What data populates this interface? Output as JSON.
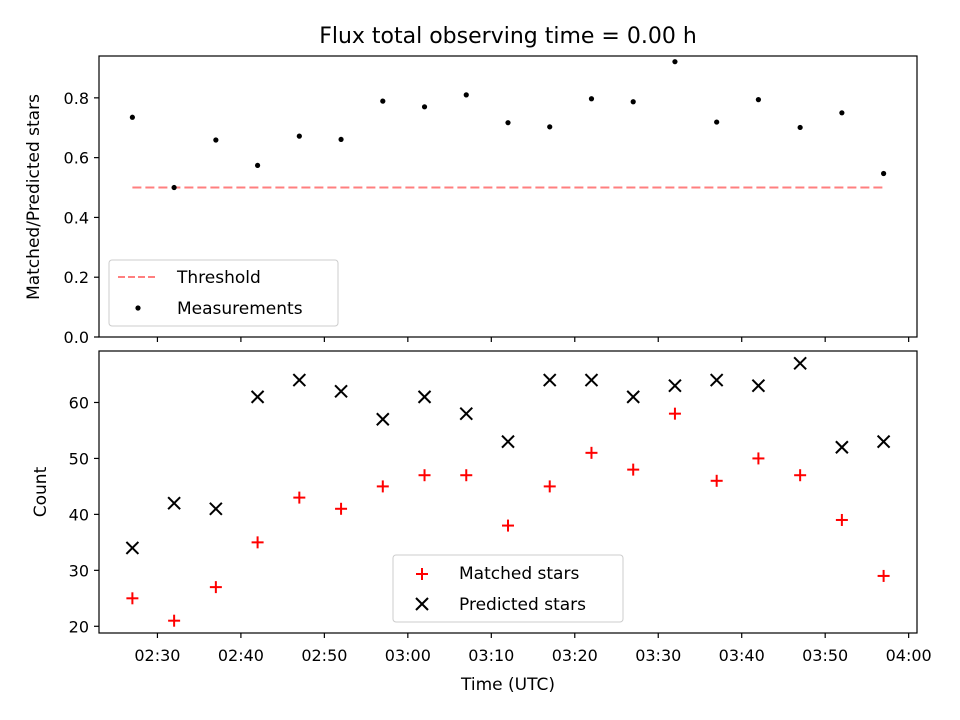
{
  "chart_data": [
    {
      "type": "scatter",
      "title": "Flux total observing time = 0.00 h",
      "xlabel": "",
      "ylabel": "Matched/Predicted stars",
      "ylim": [
        0.0,
        0.94
      ],
      "yticks": [
        0.0,
        0.2,
        0.4,
        0.6,
        0.8
      ],
      "yticklabels": [
        "0.0",
        "0.2",
        "0.4",
        "0.6",
        "0.8"
      ],
      "x_shared": true,
      "grid": false,
      "legend_position": "lower-left",
      "threshold": {
        "name": "Threshold",
        "value": 0.5,
        "x_start": "02:27",
        "x_end": "03:57",
        "color": "#ff7f7f",
        "style": "dashed"
      },
      "series": [
        {
          "name": "Measurements",
          "color": "#000000",
          "marker": "dot",
          "x": [
            "02:27",
            "02:32",
            "02:37",
            "02:42",
            "02:47",
            "02:52",
            "02:57",
            "03:02",
            "03:07",
            "03:12",
            "03:17",
            "03:22",
            "03:27",
            "03:32",
            "03:37",
            "03:42",
            "03:47",
            "03:52",
            "03:57"
          ],
          "y": [
            0.735,
            0.5,
            0.659,
            0.574,
            0.672,
            0.661,
            0.789,
            0.77,
            0.81,
            0.717,
            0.703,
            0.797,
            0.787,
            0.921,
            0.719,
            0.794,
            0.701,
            0.75,
            0.547
          ]
        }
      ]
    },
    {
      "type": "scatter",
      "title": "",
      "xlabel": "Time (UTC)",
      "ylabel": "Count",
      "xlim": [
        "02:23",
        "04:01"
      ],
      "xticks": [
        "02:30",
        "02:40",
        "02:50",
        "03:00",
        "03:10",
        "03:20",
        "03:30",
        "03:40",
        "03:50",
        "04:00"
      ],
      "xticklabels": [
        "02:30",
        "02:40",
        "02:50",
        "03:00",
        "03:10",
        "03:20",
        "03:30",
        "03:40",
        "03:50",
        "04:00"
      ],
      "ylim": [
        18.8,
        69.2
      ],
      "yticks": [
        20,
        30,
        40,
        50,
        60
      ],
      "yticklabels": [
        "20",
        "30",
        "40",
        "50",
        "60"
      ],
      "grid": false,
      "legend_position": "lower-center",
      "series": [
        {
          "name": "Matched stars",
          "color": "#ff0000",
          "marker": "plus",
          "x": [
            "02:27",
            "02:32",
            "02:37",
            "02:42",
            "02:47",
            "02:52",
            "02:57",
            "03:02",
            "03:07",
            "03:12",
            "03:17",
            "03:22",
            "03:27",
            "03:32",
            "03:37",
            "03:42",
            "03:47",
            "03:52",
            "03:57"
          ],
          "y": [
            25,
            21,
            27,
            35,
            43,
            41,
            45,
            47,
            47,
            38,
            45,
            51,
            48,
            58,
            46,
            50,
            47,
            39,
            29
          ]
        },
        {
          "name": "Predicted stars",
          "color": "#000000",
          "marker": "x",
          "x": [
            "02:27",
            "02:32",
            "02:37",
            "02:42",
            "02:47",
            "02:52",
            "02:57",
            "03:02",
            "03:07",
            "03:12",
            "03:17",
            "03:22",
            "03:27",
            "03:32",
            "03:37",
            "03:42",
            "03:47",
            "03:52",
            "03:57"
          ],
          "y": [
            34,
            42,
            41,
            61,
            64,
            62,
            57,
            61,
            58,
            53,
            64,
            64,
            61,
            63,
            64,
            63,
            67,
            52,
            53
          ]
        }
      ]
    }
  ]
}
